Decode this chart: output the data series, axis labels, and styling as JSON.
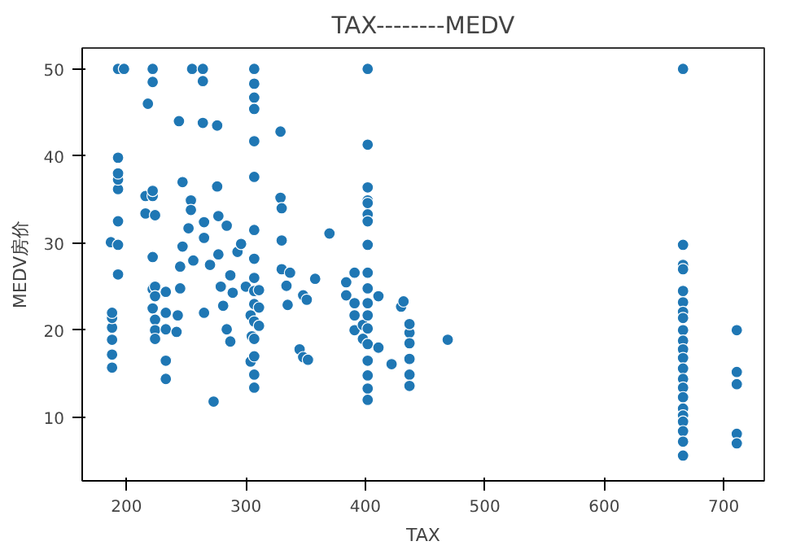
{
  "chart_data": {
    "type": "scatter",
    "title": "TAX--------MEDV",
    "xlabel": "TAX",
    "ylabel": "MEDV房价",
    "xlim": [
      163,
      734
    ],
    "ylim": [
      2.7,
      52.4
    ],
    "xticks": [
      200,
      300,
      400,
      500,
      600,
      700
    ],
    "yticks": [
      10,
      20,
      30,
      40,
      50
    ],
    "grid": false,
    "marker": "circle",
    "series": [
      {
        "color": "#1f77b4",
        "x": [
          188,
          188,
          188,
          188,
          188,
          188,
          187,
          193,
          193,
          193,
          193,
          193,
          193,
          193,
          193,
          198,
          216,
          216,
          218,
          222,
          222,
          222,
          222,
          222,
          222,
          222,
          224,
          224,
          224,
          224,
          224,
          224,
          233,
          233,
          233,
          233,
          233,
          242,
          243,
          244,
          245,
          245,
          247,
          247,
          252,
          254,
          254,
          255,
          256,
          264,
          264,
          264,
          265,
          265,
          265,
          270,
          273,
          276,
          276,
          277,
          277,
          279,
          281,
          284,
          284,
          287,
          287,
          289,
          293,
          296,
          300,
          304,
          304,
          305,
          307,
          307,
          307,
          307,
          307,
          307,
          307,
          307,
          307,
          307,
          307,
          307,
          307,
          307,
          307,
          307,
          311,
          311,
          311,
          329,
          329,
          330,
          330,
          330,
          334,
          335,
          337,
          345,
          348,
          348,
          351,
          352,
          358,
          370,
          384,
          384,
          391,
          391,
          391,
          391,
          398,
          398,
          402,
          402,
          402,
          402,
          402,
          402,
          402,
          402,
          402,
          402,
          402,
          402,
          402,
          402,
          402,
          402,
          402,
          402,
          411,
          411,
          422,
          430,
          432,
          437,
          437,
          437,
          437,
          437,
          437,
          469,
          666,
          666,
          666,
          666,
          666,
          666,
          666,
          666,
          666,
          666,
          666,
          666,
          666,
          666,
          666,
          666,
          666,
          666,
          666,
          666,
          666,
          666,
          711,
          711,
          711,
          711,
          711
        ],
        "values": [
          15.7,
          17.2,
          18.9,
          20.3,
          21.4,
          22.0,
          30.1,
          26.4,
          32.5,
          36.2,
          37.3,
          38.0,
          39.8,
          50.0,
          29.8,
          50.0,
          33.4,
          35.4,
          46.0,
          50.0,
          48.5,
          35.4,
          36.0,
          28.4,
          24.7,
          22.5,
          25.0,
          23.9,
          21.2,
          20.0,
          19.0,
          33.2,
          14.4,
          16.5,
          20.1,
          22.0,
          24.4,
          19.8,
          21.7,
          44.0,
          24.8,
          27.3,
          29.6,
          37.0,
          31.7,
          34.9,
          33.8,
          50.0,
          28.0,
          50.0,
          48.6,
          43.8,
          32.4,
          30.6,
          22.0,
          27.5,
          11.8,
          43.5,
          36.5,
          33.1,
          28.7,
          25.0,
          22.8,
          32.0,
          20.1,
          26.3,
          18.7,
          24.3,
          29.0,
          29.9,
          25.0,
          21.7,
          16.4,
          19.3,
          50.0,
          48.3,
          46.7,
          45.4,
          41.7,
          37.6,
          31.5,
          28.2,
          26.0,
          24.5,
          23.0,
          21.0,
          19.0,
          17.0,
          14.9,
          13.4,
          24.6,
          22.6,
          20.5,
          42.8,
          35.2,
          34.0,
          30.3,
          27.0,
          25.1,
          22.9,
          26.6,
          17.8,
          24.0,
          16.9,
          23.5,
          16.6,
          25.9,
          31.1,
          25.5,
          24.0,
          26.6,
          23.1,
          21.7,
          20.0,
          19.0,
          20.6,
          34.9,
          33.3,
          50.0,
          41.3,
          36.4,
          34.6,
          32.5,
          29.8,
          26.6,
          24.8,
          23.1,
          21.7,
          20.2,
          18.4,
          16.5,
          14.8,
          13.3,
          12.0,
          23.9,
          18.0,
          16.1,
          22.7,
          23.3,
          19.7,
          20.7,
          18.5,
          16.7,
          14.9,
          13.6,
          18.9,
          50.0,
          29.8,
          27.5,
          27.0,
          24.5,
          23.2,
          22.1,
          21.4,
          20.0,
          18.8,
          17.8,
          16.8,
          15.6,
          14.4,
          13.4,
          12.3,
          11.0,
          10.2,
          9.5,
          8.4,
          7.2,
          5.6,
          20.0,
          15.2,
          13.8,
          8.1,
          7.0
        ]
      }
    ]
  }
}
